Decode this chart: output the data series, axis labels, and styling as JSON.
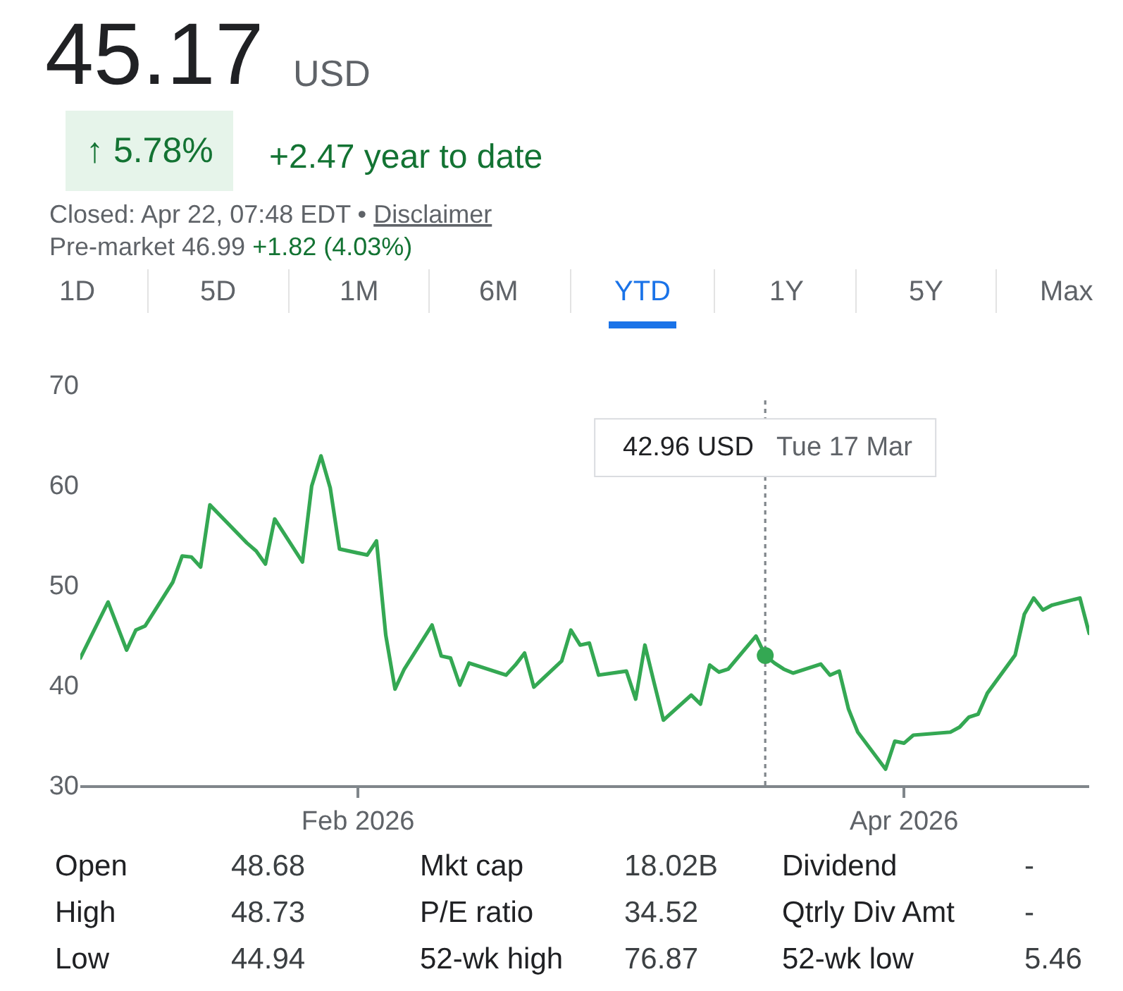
{
  "chart_data": {
    "type": "line",
    "title": "45.17",
    "x": [
      "2026-01-02",
      "2026-01-05",
      "2026-01-06",
      "2026-01-07",
      "2026-01-08",
      "2026-01-09",
      "2026-01-12",
      "2026-01-13",
      "2026-01-14",
      "2026-01-15",
      "2026-01-16",
      "2026-01-20",
      "2026-01-21",
      "2026-01-22",
      "2026-01-23",
      "2026-01-26",
      "2026-01-27",
      "2026-01-28",
      "2026-01-29",
      "2026-01-30",
      "2026-02-02",
      "2026-02-03",
      "2026-02-04",
      "2026-02-05",
      "2026-02-06",
      "2026-02-09",
      "2026-02-10",
      "2026-02-11",
      "2026-02-12",
      "2026-02-13",
      "2026-02-17",
      "2026-02-18",
      "2026-02-19",
      "2026-02-20",
      "2026-02-23",
      "2026-02-24",
      "2026-02-25",
      "2026-02-26",
      "2026-02-27",
      "2026-03-02",
      "2026-03-03",
      "2026-03-04",
      "2026-03-05",
      "2026-03-06",
      "2026-03-09",
      "2026-03-10",
      "2026-03-11",
      "2026-03-12",
      "2026-03-13",
      "2026-03-16",
      "2026-03-17",
      "2026-03-18",
      "2026-03-19",
      "2026-03-20",
      "2026-03-23",
      "2026-03-24",
      "2026-03-25",
      "2026-03-26",
      "2026-03-27",
      "2026-03-30",
      "2026-03-31",
      "2026-04-01",
      "2026-04-02",
      "2026-04-06",
      "2026-04-07",
      "2026-04-08",
      "2026-04-09",
      "2026-04-10",
      "2026-04-13",
      "2026-04-14",
      "2026-04-15",
      "2026-04-16",
      "2026-04-17",
      "2026-04-20",
      "2026-04-21"
    ],
    "values": [
      42.7,
      48.3,
      45.9,
      43.5,
      45.5,
      45.9,
      50.3,
      52.9,
      52.8,
      51.8,
      58.0,
      54.2,
      53.4,
      52.1,
      56.6,
      52.3,
      59.9,
      62.9,
      59.7,
      53.6,
      53.0,
      54.4,
      45.0,
      39.6,
      41.6,
      46.0,
      42.9,
      42.7,
      40.0,
      42.2,
      41.0,
      42.0,
      43.2,
      39.8,
      42.4,
      45.5,
      44.0,
      44.2,
      41.0,
      41.4,
      38.6,
      44.0,
      40.2,
      36.5,
      39.0,
      38.1,
      42.0,
      41.3,
      41.6,
      44.9,
      42.96,
      42.2,
      41.6,
      41.2,
      42.1,
      41.0,
      41.4,
      37.6,
      35.3,
      31.6,
      34.4,
      34.2,
      35.0,
      35.3,
      35.8,
      36.8,
      37.1,
      39.2,
      43.0,
      47.1,
      48.7,
      47.5,
      48.0,
      48.7,
      45.17
    ],
    "color": "#34a853",
    "line_style": "solid",
    "xlim": [
      "2026-01-02",
      "2026-04-21"
    ],
    "xticks": [
      {
        "value": "2026-02-01",
        "label": "Feb 2026"
      },
      {
        "value": "2026-04-01",
        "label": "Apr 2026"
      }
    ],
    "ylim": [
      30,
      70
    ],
    "yticks": [
      30,
      40,
      50,
      60,
      70
    ],
    "grid": false,
    "ref_lines": [
      {
        "axis": "x",
        "value": "2026-03-17",
        "label": "Tue 17 Mar",
        "color": "#80868b",
        "line_style": "dotted"
      }
    ],
    "annotations": [
      "USD",
      "↑ 5.78%",
      "+2.47 year to date",
      "Closed: Apr 22, 07:48 EDT •",
      "Disclaimer",
      "Pre-market 46.99",
      "+1.82 (4.03%)",
      "1D",
      "5D",
      "1M",
      "6M",
      "YTD",
      "1Y",
      "5Y",
      "Max",
      "Open",
      "48.68",
      "Mkt cap",
      "18.02B",
      "Dividend",
      "-",
      "High",
      "48.73",
      "P/E ratio",
      "34.52",
      "Qtrly Div Amt",
      "-",
      "Low",
      "44.94",
      "52-wk high",
      "76.87",
      "52-wk low",
      "5.46",
      "42.96 USD"
    ]
  }
}
